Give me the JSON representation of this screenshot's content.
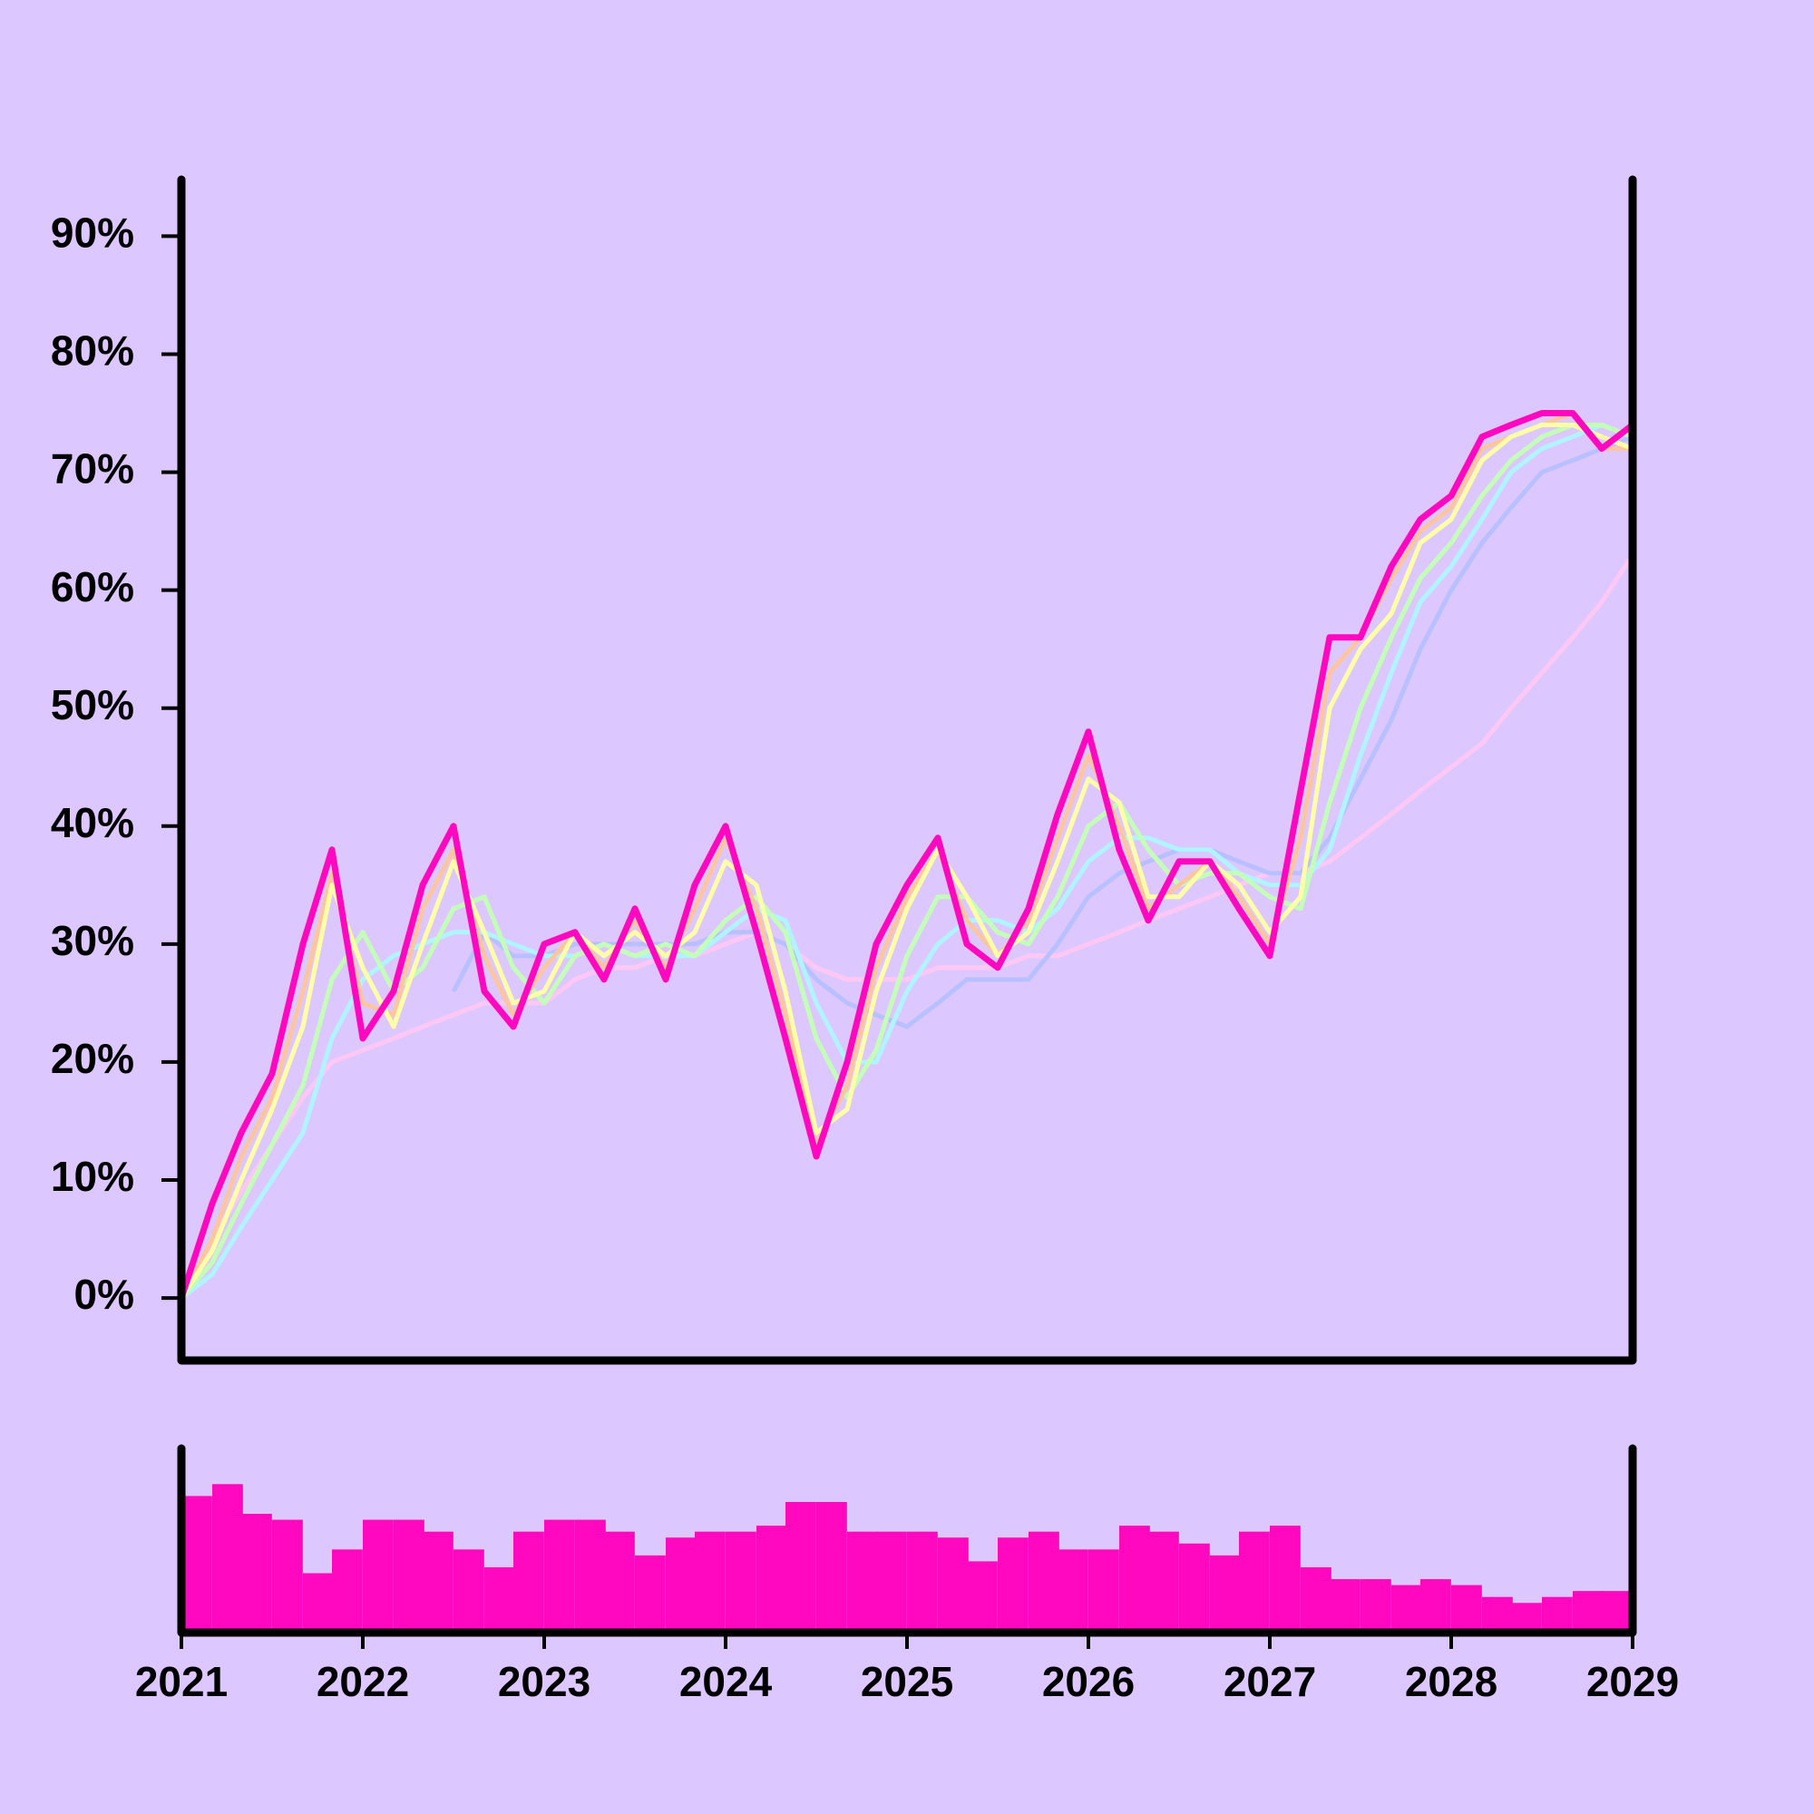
{
  "chart_data": [
    {
      "type": "line",
      "x": [
        2021,
        2021.17,
        2021.33,
        2021.5,
        2021.67,
        2021.83,
        2022,
        2022.17,
        2022.33,
        2022.5,
        2022.67,
        2022.83,
        2023,
        2023.17,
        2023.33,
        2023.5,
        2023.67,
        2023.83,
        2024,
        2024.17,
        2024.33,
        2024.5,
        2024.67,
        2024.83,
        2025,
        2025.17,
        2025.33,
        2025.5,
        2025.67,
        2025.83,
        2026,
        2026.17,
        2026.33,
        2026.5,
        2026.67,
        2026.83,
        2027,
        2027.17,
        2027.33,
        2027.5,
        2027.67,
        2027.83,
        2028,
        2028.17,
        2028.33,
        2028.5,
        2028.67,
        2028.83,
        2029
      ],
      "series": [
        {
          "color": "#ffc8f4",
          "values": [
            0,
            5,
            9,
            13,
            17,
            20,
            21,
            22,
            23,
            24,
            25,
            25,
            25,
            27,
            28,
            28,
            29,
            29,
            30,
            31,
            30,
            28,
            27,
            27,
            27,
            28,
            28,
            28,
            29,
            29,
            30,
            31,
            32,
            33,
            34,
            35,
            36,
            36,
            37,
            39,
            41,
            43,
            45,
            47,
            50,
            53,
            56,
            59,
            63
          ]
        },
        {
          "color": "#b8c0ff",
          "values": [
            null,
            null,
            null,
            null,
            null,
            null,
            null,
            null,
            null,
            26,
            31,
            29,
            29,
            30,
            30,
            30,
            30,
            30,
            31,
            31,
            30,
            27,
            25,
            24,
            23,
            25,
            27,
            27,
            27,
            30,
            34,
            36,
            37,
            38,
            38,
            37,
            36,
            36,
            39,
            44,
            49,
            55,
            60,
            64,
            67,
            70,
            71,
            72,
            73
          ]
        },
        {
          "color": "#b0f4ff",
          "values": [
            0,
            2,
            6,
            10,
            14,
            22,
            27,
            29,
            30,
            31,
            31,
            30,
            29,
            29,
            30,
            29,
            29,
            29,
            31,
            33,
            32,
            25,
            20,
            20,
            26,
            30,
            32,
            32,
            31,
            33,
            37,
            39,
            39,
            38,
            38,
            36,
            35,
            35,
            38,
            46,
            53,
            59,
            62,
            66,
            70,
            72,
            73,
            74,
            73
          ]
        },
        {
          "color": "#c4ffb8",
          "values": [
            0,
            3,
            8,
            13,
            18,
            27,
            31,
            26,
            28,
            33,
            34,
            28,
            25,
            29,
            30,
            29,
            30,
            29,
            32,
            34,
            31,
            22,
            17,
            21,
            29,
            34,
            34,
            31,
            30,
            34,
            40,
            42,
            38,
            35,
            36,
            36,
            34,
            33,
            42,
            50,
            56,
            61,
            64,
            68,
            71,
            73,
            74,
            74,
            73
          ]
        },
        {
          "color": "#ffc4a0",
          "values": [
            0,
            5,
            12,
            17,
            26,
            36,
            25,
            24,
            33,
            38,
            29,
            24,
            28,
            31,
            28,
            32,
            28,
            33,
            39,
            33,
            24,
            13,
            18,
            28,
            34,
            38,
            32,
            29,
            32,
            39,
            46,
            40,
            33,
            35,
            37,
            34,
            30,
            39,
            53,
            56,
            61,
            65,
            67,
            72,
            73,
            74,
            75,
            72,
            72
          ]
        },
        {
          "color": "#ffffa8",
          "values": [
            0,
            4,
            10,
            16,
            23,
            35,
            28,
            23,
            30,
            37,
            31,
            25,
            26,
            31,
            29,
            31,
            29,
            31,
            37,
            35,
            26,
            14,
            16,
            26,
            33,
            38,
            34,
            29,
            31,
            37,
            44,
            42,
            34,
            34,
            37,
            35,
            31,
            34,
            50,
            55,
            58,
            64,
            66,
            71,
            73,
            74,
            74,
            73,
            72
          ]
        },
        {
          "color": "#ff08c0",
          "values": [
            0,
            8,
            14,
            19,
            30,
            38,
            22,
            26,
            35,
            40,
            26,
            23,
            30,
            31,
            27,
            33,
            27,
            35,
            40,
            31,
            22,
            12,
            20,
            30,
            35,
            39,
            30,
            28,
            33,
            41,
            48,
            38,
            32,
            37,
            37,
            33,
            29,
            43,
            56,
            56,
            62,
            66,
            68,
            73,
            74,
            75,
            75,
            72,
            74
          ]
        }
      ],
      "xlim": [
        2021,
        2029
      ],
      "ylim": [
        -5.3,
        94.8
      ],
      "yticks": [
        {
          "value": 0,
          "label": "0%"
        },
        {
          "value": 10,
          "label": "10%"
        },
        {
          "value": 20,
          "label": "20%"
        },
        {
          "value": 30,
          "label": "30%"
        },
        {
          "value": 40,
          "label": "40%"
        },
        {
          "value": 50,
          "label": "50%"
        },
        {
          "value": 60,
          "label": "60%"
        },
        {
          "value": 70,
          "label": "70%"
        },
        {
          "value": 80,
          "label": "80%"
        },
        {
          "value": 90,
          "label": "90%"
        }
      ]
    },
    {
      "type": "bar",
      "x": [
        2021,
        2021.17,
        2021.33,
        2021.5,
        2021.67,
        2021.83,
        2022,
        2022.17,
        2022.33,
        2022.5,
        2022.67,
        2022.83,
        2023,
        2023.17,
        2023.33,
        2023.5,
        2023.67,
        2023.83,
        2024,
        2024.17,
        2024.33,
        2024.5,
        2024.67,
        2024.83,
        2025,
        2025.17,
        2025.33,
        2025.5,
        2025.67,
        2025.83,
        2026,
        2026.17,
        2026.33,
        2026.5,
        2026.67,
        2026.83,
        2027,
        2027.17,
        2027.33,
        2027.5,
        2027.67,
        2027.83,
        2028,
        2028.17,
        2028.33,
        2028.5,
        2028.67,
        2028.83
      ],
      "values": [
        115,
        125,
        100,
        95,
        50,
        70,
        95,
        95,
        85,
        70,
        55,
        85,
        95,
        95,
        85,
        65,
        80,
        85,
        85,
        90,
        110,
        110,
        85,
        85,
        85,
        80,
        60,
        80,
        85,
        70,
        70,
        90,
        85,
        75,
        65,
        85,
        90,
        55,
        45,
        45,
        40,
        45,
        40,
        30,
        25,
        30,
        35,
        35
      ],
      "color": "#ff08c0",
      "xlim": [
        2021,
        2029
      ],
      "ylim": [
        0,
        155
      ],
      "xticks": [
        2021,
        2022,
        2023,
        2024,
        2025,
        2026,
        2027,
        2028,
        2029
      ]
    }
  ]
}
